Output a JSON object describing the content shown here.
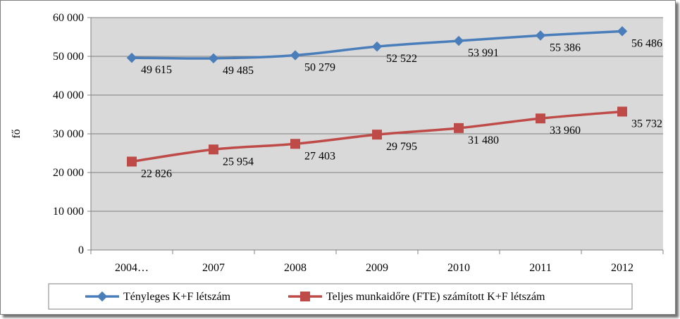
{
  "chart_data": {
    "type": "line",
    "categories": [
      "2004…",
      "2007",
      "2008",
      "2009",
      "2010",
      "2011",
      "2012"
    ],
    "series": [
      {
        "name": "Tényleges K+F létszám",
        "values": [
          49615,
          49485,
          50279,
          52522,
          53991,
          55386,
          56486
        ],
        "labels": [
          "49 615",
          "49 485",
          "50 279",
          "52 522",
          "53 991",
          "55 386",
          "56 486"
        ],
        "color": "#4a7ebb",
        "marker": "diamond"
      },
      {
        "name": "Teljes munkaidőre (FTE) számított K+F létszám",
        "values": [
          22826,
          25954,
          27403,
          29795,
          31480,
          33960,
          35732
        ],
        "labels": [
          "22 826",
          "25 954",
          "27 403",
          "29 795",
          "31 480",
          "33 960",
          "35 732"
        ],
        "color": "#be4b48",
        "marker": "square"
      }
    ],
    "ylabel": "fő",
    "ylim": [
      0,
      60000
    ],
    "yticks": [
      0,
      10000,
      20000,
      30000,
      40000,
      50000,
      60000
    ],
    "ytick_labels": [
      "0",
      "10 000",
      "20 000",
      "30 000",
      "40 000",
      "50 000",
      "60 000"
    ],
    "grid": true,
    "plot_background": "#d9d9d9",
    "legend_position": "bottom"
  }
}
